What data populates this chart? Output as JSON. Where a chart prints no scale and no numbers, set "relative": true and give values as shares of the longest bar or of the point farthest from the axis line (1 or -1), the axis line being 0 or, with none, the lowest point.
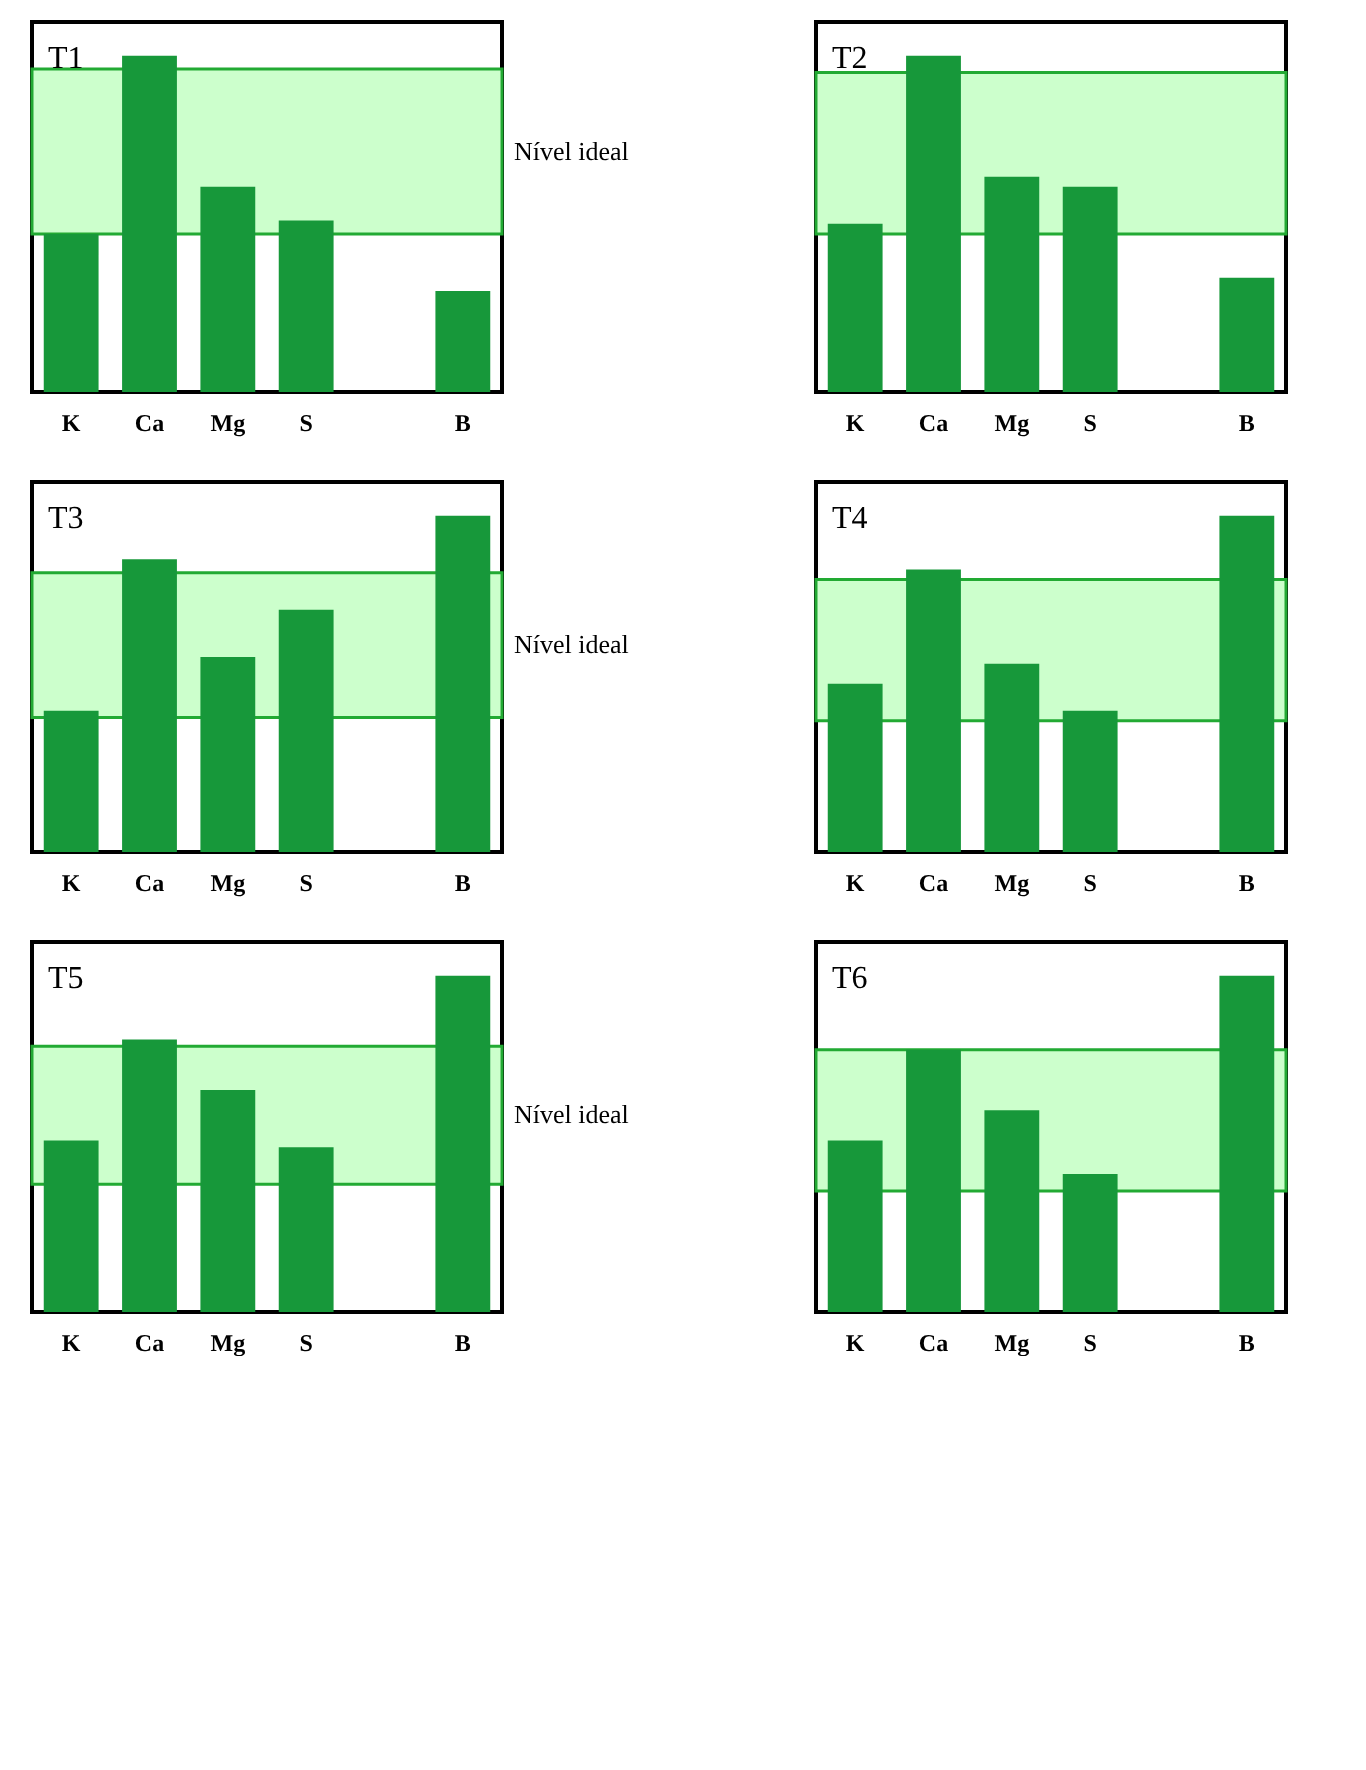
{
  "chart_data": [
    {
      "type": "bar",
      "title": "T1",
      "relative": true,
      "categories": [
        "K",
        "Ca",
        "Mg",
        "S",
        null,
        "B"
      ],
      "series": [
        {
          "color": "#17983a",
          "values": [
            0.47,
            1,
            0.61,
            0.51,
            null,
            0.3
          ]
        }
      ],
      "bands": [
        {
          "axis": "y",
          "from": 0.47,
          "to": 0.96,
          "label": "Nível ideal",
          "color": "#ccffcc"
        }
      ]
    },
    {
      "type": "bar",
      "title": "T2",
      "relative": true,
      "categories": [
        "K",
        "Ca",
        "Mg",
        "S",
        null,
        "B"
      ],
      "series": [
        {
          "color": "#17983a",
          "values": [
            0.5,
            1,
            0.64,
            0.61,
            null,
            0.34
          ]
        }
      ],
      "bands": [
        {
          "axis": "y",
          "from": 0.47,
          "to": 0.95,
          "color": "#ccffcc"
        }
      ]
    },
    {
      "type": "bar",
      "title": "T3",
      "relative": true,
      "categories": [
        "K",
        "Ca",
        "Mg",
        "S",
        null,
        "B"
      ],
      "series": [
        {
          "color": "#17983a",
          "values": [
            0.42,
            0.87,
            0.58,
            0.72,
            null,
            1
          ]
        }
      ],
      "bands": [
        {
          "axis": "y",
          "from": 0.4,
          "to": 0.83,
          "label": "Nível ideal",
          "color": "#ccffcc"
        }
      ]
    },
    {
      "type": "bar",
      "title": "T4",
      "relative": true,
      "categories": [
        "K",
        "Ca",
        "Mg",
        "S",
        null,
        "B"
      ],
      "series": [
        {
          "color": "#17983a",
          "values": [
            0.5,
            0.84,
            0.56,
            0.42,
            null,
            1
          ]
        }
      ],
      "bands": [
        {
          "axis": "y",
          "from": 0.39,
          "to": 0.81,
          "color": "#ccffcc"
        }
      ]
    },
    {
      "type": "bar",
      "title": "T5",
      "relative": true,
      "categories": [
        "K",
        "Ca",
        "Mg",
        "S",
        null,
        "B"
      ],
      "series": [
        {
          "color": "#17983a",
          "values": [
            0.51,
            0.81,
            0.66,
            0.49,
            null,
            1
          ]
        }
      ],
      "bands": [
        {
          "axis": "y",
          "from": 0.38,
          "to": 0.79,
          "label": "Nível ideal",
          "color": "#ccffcc"
        }
      ]
    },
    {
      "type": "bar",
      "title": "T6",
      "relative": true,
      "categories": [
        "K",
        "Ca",
        "Mg",
        "S",
        null,
        "B"
      ],
      "series": [
        {
          "color": "#17983a",
          "values": [
            0.51,
            0.78,
            0.6,
            0.41,
            null,
            1
          ]
        }
      ],
      "bands": [
        {
          "axis": "y",
          "from": 0.36,
          "to": 0.78,
          "color": "#ccffcc"
        }
      ]
    }
  ]
}
